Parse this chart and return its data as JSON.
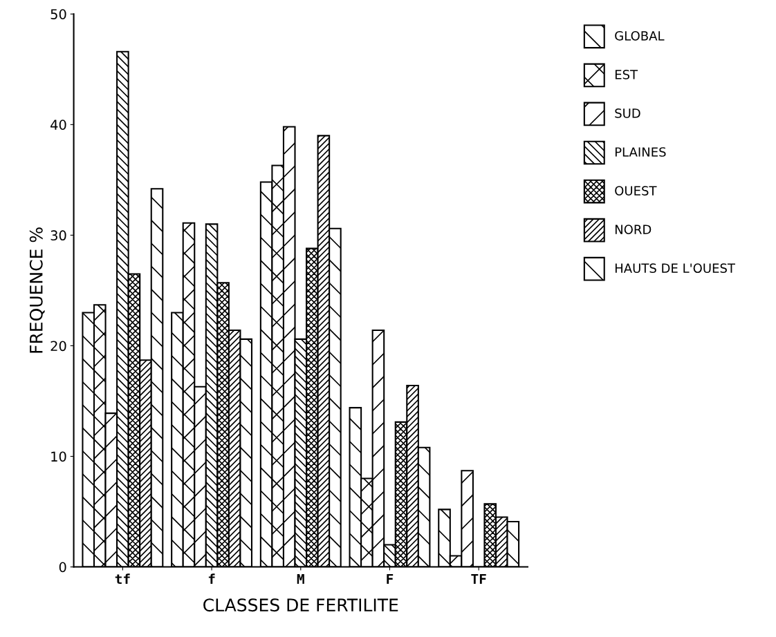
{
  "chart_data": {
    "type": "bar",
    "categories": [
      "tf",
      "f",
      "M",
      "F",
      "TF"
    ],
    "xlabel": "CLASSES DE FERTILITE",
    "ylabel": "FREQUENCE %",
    "ylim": [
      0,
      50
    ],
    "yticks": [
      0,
      10,
      20,
      30,
      40,
      50
    ],
    "grid": false,
    "legend": "right",
    "series": [
      {
        "name": "GLOBAL",
        "color": "#000000",
        "values": [
          23,
          23,
          34.8,
          14.4,
          5.2
        ]
      },
      {
        "name": "EST",
        "color": "#000000",
        "values": [
          23.7,
          31.1,
          36.3,
          8,
          1
        ]
      },
      {
        "name": "SUD",
        "color": "#000000",
        "values": [
          13.9,
          16.3,
          39.8,
          21.4,
          8.7
        ]
      },
      {
        "name": "PLAINES",
        "color": "#000000",
        "values": [
          46.6,
          31,
          20.6,
          2,
          0
        ]
      },
      {
        "name": "OUEST",
        "color": "#000000",
        "values": [
          26.5,
          25.7,
          28.8,
          13.1,
          5.7
        ]
      },
      {
        "name": "NORD",
        "color": "#000000",
        "values": [
          18.7,
          21.4,
          39,
          16.4,
          4.5
        ]
      },
      {
        "name": "HAUTS DE L'OUEST",
        "color": "#000000",
        "values": [
          34.2,
          20.6,
          30.6,
          10.8,
          4.1
        ]
      }
    ]
  }
}
